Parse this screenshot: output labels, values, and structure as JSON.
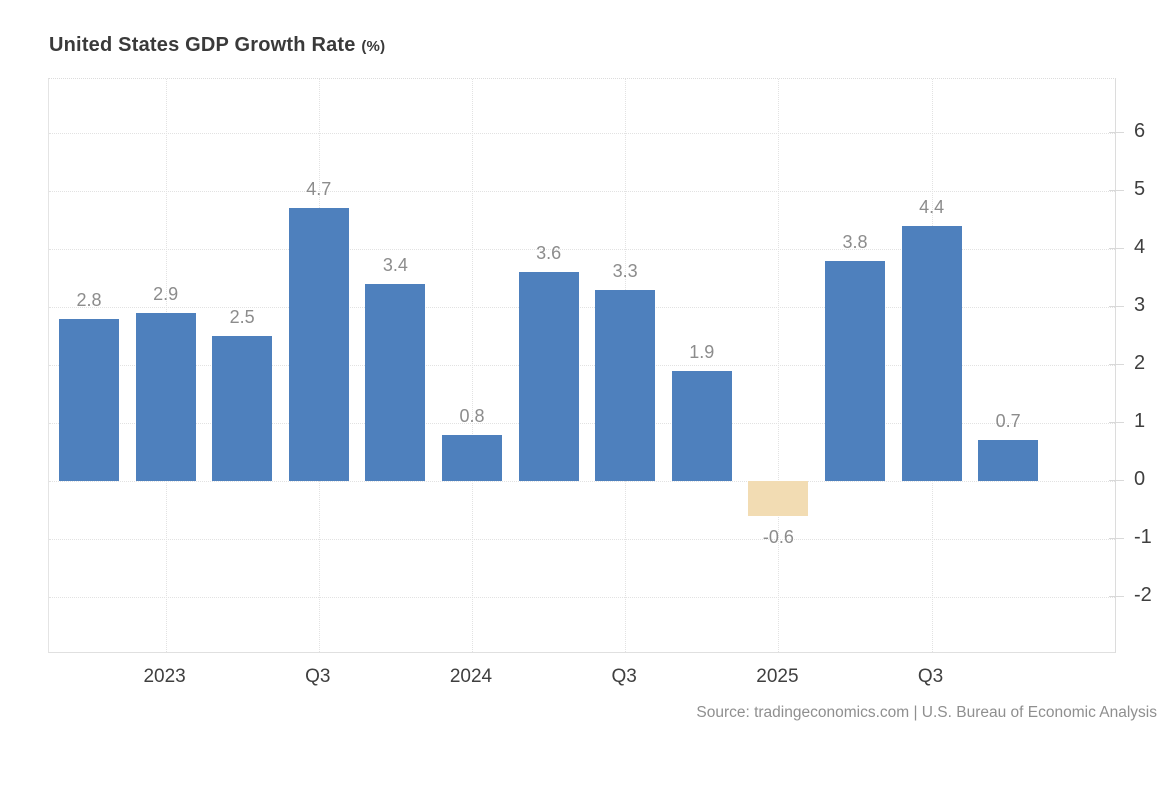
{
  "title": {
    "text": "United States GDP Growth Rate",
    "unit": "(%)"
  },
  "source": "Source: tradingeconomics.com | U.S. Bureau of Economic Analysis",
  "colors": {
    "positive_bar": "#4e80bd",
    "negative_bar": "#f2dcb3",
    "value_label": "#8c8c8c",
    "axis_text": "#3f3f3f",
    "gridline": "#e2e2e2"
  },
  "chart_data": {
    "type": "bar",
    "title": "United States GDP Growth Rate (%)",
    "xlabel": "",
    "ylabel": "",
    "values": [
      2.8,
      2.9,
      2.5,
      4.7,
      3.4,
      0.8,
      3.6,
      3.3,
      1.9,
      -0.6,
      3.8,
      4.4,
      0.7
    ],
    "value_labels": [
      "2.8",
      "2.9",
      "2.5",
      "4.7",
      "3.4",
      "0.8",
      "3.6",
      "3.3",
      "1.9",
      "-0.6",
      "3.8",
      "4.4",
      "0.7"
    ],
    "xticks": [
      {
        "label": "2023",
        "bar_index": 1
      },
      {
        "label": "Q3",
        "bar_index": 3
      },
      {
        "label": "2024",
        "bar_index": 5
      },
      {
        "label": "Q3",
        "bar_index": 7
      },
      {
        "label": "2025",
        "bar_index": 9
      },
      {
        "label": "Q3",
        "bar_index": 11
      }
    ],
    "yticks": [
      6,
      5,
      4,
      3,
      2,
      1,
      0,
      -1,
      -2
    ],
    "ylim": [
      -3,
      7
    ],
    "grid": "dotted horizontal and vertical",
    "legend": "none",
    "y_axis_position": "right",
    "negative_bar_indices": [
      9
    ]
  }
}
